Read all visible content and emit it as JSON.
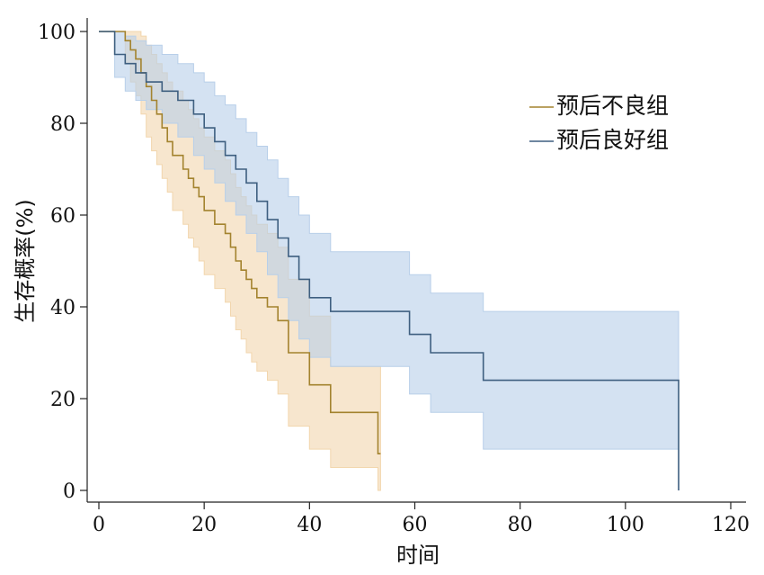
{
  "chart_data": {
    "type": "line",
    "xlabel": "时间",
    "ylabel": "生存概率(%)",
    "xlim": [
      0,
      120
    ],
    "ylim": [
      0,
      100
    ],
    "xticks": [
      0,
      20,
      40,
      60,
      80,
      100,
      120
    ],
    "yticks": [
      0,
      20,
      40,
      60,
      80,
      100
    ],
    "grid": false,
    "legend_position": "top-right",
    "series": [
      {
        "name": "预后不良组",
        "color": "#a3832e",
        "band_color": "#f2d6ad",
        "x": [
          0,
          5,
          6,
          7,
          8,
          9,
          10,
          11,
          12,
          13,
          14,
          16,
          17,
          18,
          19,
          20,
          22,
          24,
          25,
          26,
          27,
          28,
          29,
          30,
          32,
          34,
          36,
          40,
          44,
          53,
          53.5
        ],
        "y": [
          100,
          98,
          96,
          94,
          91,
          88,
          85,
          82,
          79,
          76,
          73,
          70,
          68,
          66,
          64,
          61,
          58,
          56,
          53,
          50,
          48,
          46,
          44,
          42,
          40,
          37,
          30,
          23,
          17,
          8,
          8
        ],
        "lower": [
          100,
          93,
          89,
          86,
          82,
          77,
          74,
          71,
          68,
          65,
          61,
          58,
          55,
          53,
          50,
          47,
          44,
          41,
          38,
          35,
          33,
          30,
          28,
          26,
          24,
          21,
          14,
          9,
          5,
          0,
          0
        ],
        "upper": [
          100,
          100,
          100,
          100,
          99,
          97,
          95,
          93,
          91,
          89,
          87,
          85,
          83,
          81,
          79,
          77,
          74,
          72,
          69,
          66,
          64,
          62,
          60,
          58,
          56,
          53,
          46,
          38,
          27,
          27,
          27
        ]
      },
      {
        "name": "预后良好组",
        "color": "#3e5f80",
        "band_color": "#b8cfe9",
        "x": [
          0,
          3,
          5,
          7,
          9,
          12,
          15,
          18,
          20,
          22,
          24,
          26,
          28,
          30,
          32,
          34,
          36,
          38,
          40,
          44,
          59,
          63,
          73,
          110,
          110.1
        ],
        "y": [
          100,
          95,
          93,
          91,
          89,
          87,
          85,
          82,
          79,
          76,
          73,
          70,
          67,
          63,
          59,
          55,
          51,
          46,
          42,
          39,
          34,
          30,
          24,
          24,
          0
        ],
        "lower": [
          100,
          90,
          87,
          85,
          83,
          80,
          77,
          73,
          70,
          67,
          63,
          60,
          56,
          52,
          47,
          42,
          37,
          33,
          29,
          27,
          21,
          17,
          9,
          9,
          0
        ],
        "upper": [
          100,
          100,
          99,
          98,
          97,
          95,
          93,
          91,
          89,
          86,
          84,
          81,
          78,
          75,
          72,
          68,
          64,
          60,
          56,
          52,
          47,
          43,
          39,
          39,
          0
        ]
      }
    ]
  }
}
